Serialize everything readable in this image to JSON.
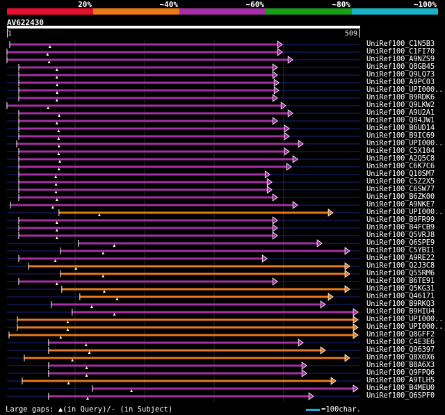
{
  "legend": {
    "segments": [
      {
        "label": "20%",
        "color": "#e8102c"
      },
      {
        "label": "~40%",
        "color": "#e87a1a"
      },
      {
        "label": "~60%",
        "color": "#a62fa6"
      },
      {
        "label": "~80%",
        "color": "#1a9e1a"
      },
      {
        "label": "~100%",
        "color": "#1ab4c8"
      }
    ]
  },
  "query": {
    "id": "AV622430",
    "start": "1",
    "end": "509"
  },
  "colors": {
    "purple": "#a62fa6",
    "orange": "#e87a1a",
    "gap_line": "#1a2680",
    "marker": "#ffffc8"
  },
  "hits": [
    {
      "label": "UniRef100_C1N5B3",
      "color": "purple",
      "qs": 4,
      "qe": 390
    },
    {
      "label": "UniRef100_C1FI70",
      "color": "purple",
      "qs": 0,
      "qe": 390
    },
    {
      "label": "UniRef100_A9NZS9",
      "color": "purple",
      "qs": 0,
      "qe": 405
    },
    {
      "label": "UniRef100_Q8GB45",
      "color": "purple",
      "qs": 17,
      "qe": 383
    },
    {
      "label": "UniRef100_Q9LQ73",
      "color": "purple",
      "qs": 17,
      "qe": 383
    },
    {
      "label": "UniRef100_A9PC03",
      "color": "purple",
      "qs": 17,
      "qe": 385
    },
    {
      "label": "UniRef100_UPI000..",
      "color": "purple",
      "qs": 17,
      "qe": 385
    },
    {
      "label": "UniRef100_B9RDK6",
      "color": "purple",
      "qs": 17,
      "qe": 383
    },
    {
      "label": "UniRef100_Q9LKW2",
      "color": "purple",
      "qs": 0,
      "qe": 395
    },
    {
      "label": "UniRef100_A9U2A1",
      "color": "purple",
      "qs": 17,
      "qe": 405
    },
    {
      "label": "UniRef100_Q84JW1",
      "color": "purple",
      "qs": 17,
      "qe": 383
    },
    {
      "label": "UniRef100_B6UD14",
      "color": "purple",
      "qs": 17,
      "qe": 400
    },
    {
      "label": "UniRef100_B9IC69",
      "color": "purple",
      "qs": 17,
      "qe": 400
    },
    {
      "label": "UniRef100_UPI000..",
      "color": "purple",
      "qs": 14,
      "qe": 420
    },
    {
      "label": "UniRef100_C5X104",
      "color": "purple",
      "qs": 17,
      "qe": 400
    },
    {
      "label": "UniRef100_A2Q5C8",
      "color": "purple",
      "qs": 17,
      "qe": 412
    },
    {
      "label": "UniRef100_C6K7C6",
      "color": "purple",
      "qs": 17,
      "qe": 403
    },
    {
      "label": "UniRef100_Q10SM7",
      "color": "purple",
      "qs": 17,
      "qe": 372
    },
    {
      "label": "UniRef100_C5Z2X5",
      "color": "purple",
      "qs": 17,
      "qe": 375
    },
    {
      "label": "UniRef100_C6SW77",
      "color": "purple",
      "qs": 17,
      "qe": 375
    },
    {
      "label": "UniRef100_B6ZK00",
      "color": "purple",
      "qs": 17,
      "qe": 383
    },
    {
      "label": "UniRef100_A9NKE7",
      "color": "purple",
      "qs": 5,
      "qe": 412
    },
    {
      "label": "UniRef100_UPI000..",
      "color": "orange",
      "qs": 75,
      "qe": 463
    },
    {
      "label": "UniRef100_B9FR99",
      "color": "purple",
      "qs": 17,
      "qe": 383
    },
    {
      "label": "UniRef100_B4FCB9",
      "color": "purple",
      "qs": 17,
      "qe": 383
    },
    {
      "label": "UniRef100_Q5VRJ8",
      "color": "purple",
      "qs": 17,
      "qe": 383
    },
    {
      "label": "UniRef100_Q6SPE9",
      "color": "purple",
      "qs": 103,
      "qe": 447
    },
    {
      "label": "UniRef100_C5YBI1",
      "color": "purple",
      "qs": 77,
      "qe": 487
    },
    {
      "label": "UniRef100_A9RE22",
      "color": "purple",
      "qs": 17,
      "qe": 368
    },
    {
      "label": "UniRef100_Q2J3C8",
      "color": "orange",
      "qs": 31,
      "qe": 487
    },
    {
      "label": "UniRef100_Q55RM6",
      "color": "orange",
      "qs": 77,
      "qe": 487
    },
    {
      "label": "UniRef100_B6TE91",
      "color": "purple",
      "qs": 17,
      "qe": 383
    },
    {
      "label": "UniRef100_Q5KG31",
      "color": "orange",
      "qs": 79,
      "qe": 487
    },
    {
      "label": "UniRef100_Q46171",
      "color": "orange",
      "qs": 105,
      "qe": 463
    },
    {
      "label": "UniRef100_B9RKQ3",
      "color": "purple",
      "qs": 64,
      "qe": 452
    },
    {
      "label": "UniRef100_B9HIU4",
      "color": "purple",
      "qs": 94,
      "qe": 499
    },
    {
      "label": "UniRef100_UPI000..",
      "color": "orange",
      "qs": 15,
      "qe": 499
    },
    {
      "label": "UniRef100_UPI000..",
      "color": "orange",
      "qs": 15,
      "qe": 499
    },
    {
      "label": "UniRef100_Q8GFF2",
      "color": "orange",
      "qs": 3,
      "qe": 499
    },
    {
      "label": "UniRef100_C4E3E6",
      "color": "purple",
      "qs": 60,
      "qe": 420
    },
    {
      "label": "UniRef100_Q96397",
      "color": "orange",
      "qs": 60,
      "qe": 452
    },
    {
      "label": "UniRef100_Q8X0X6",
      "color": "orange",
      "qs": 25,
      "qe": 487
    },
    {
      "label": "UniRef100_B8A6X3",
      "color": "purple",
      "qs": 60,
      "qe": 425
    },
    {
      "label": "UniRef100_Q9FPQ6",
      "color": "purple",
      "qs": 60,
      "qe": 425
    },
    {
      "label": "UniRef100_A9TLH5",
      "color": "orange",
      "qs": 22,
      "qe": 467
    },
    {
      "label": "UniRef100_B4MEU0",
      "color": "purple",
      "qs": 123,
      "qe": 499
    },
    {
      "label": "UniRef100_Q6SPF0",
      "color": "purple",
      "qs": 60,
      "qe": 435
    }
  ],
  "footer": {
    "text": "Large gaps: ▲(in Query)/- (in Subject)",
    "scale_text": "=100char."
  }
}
